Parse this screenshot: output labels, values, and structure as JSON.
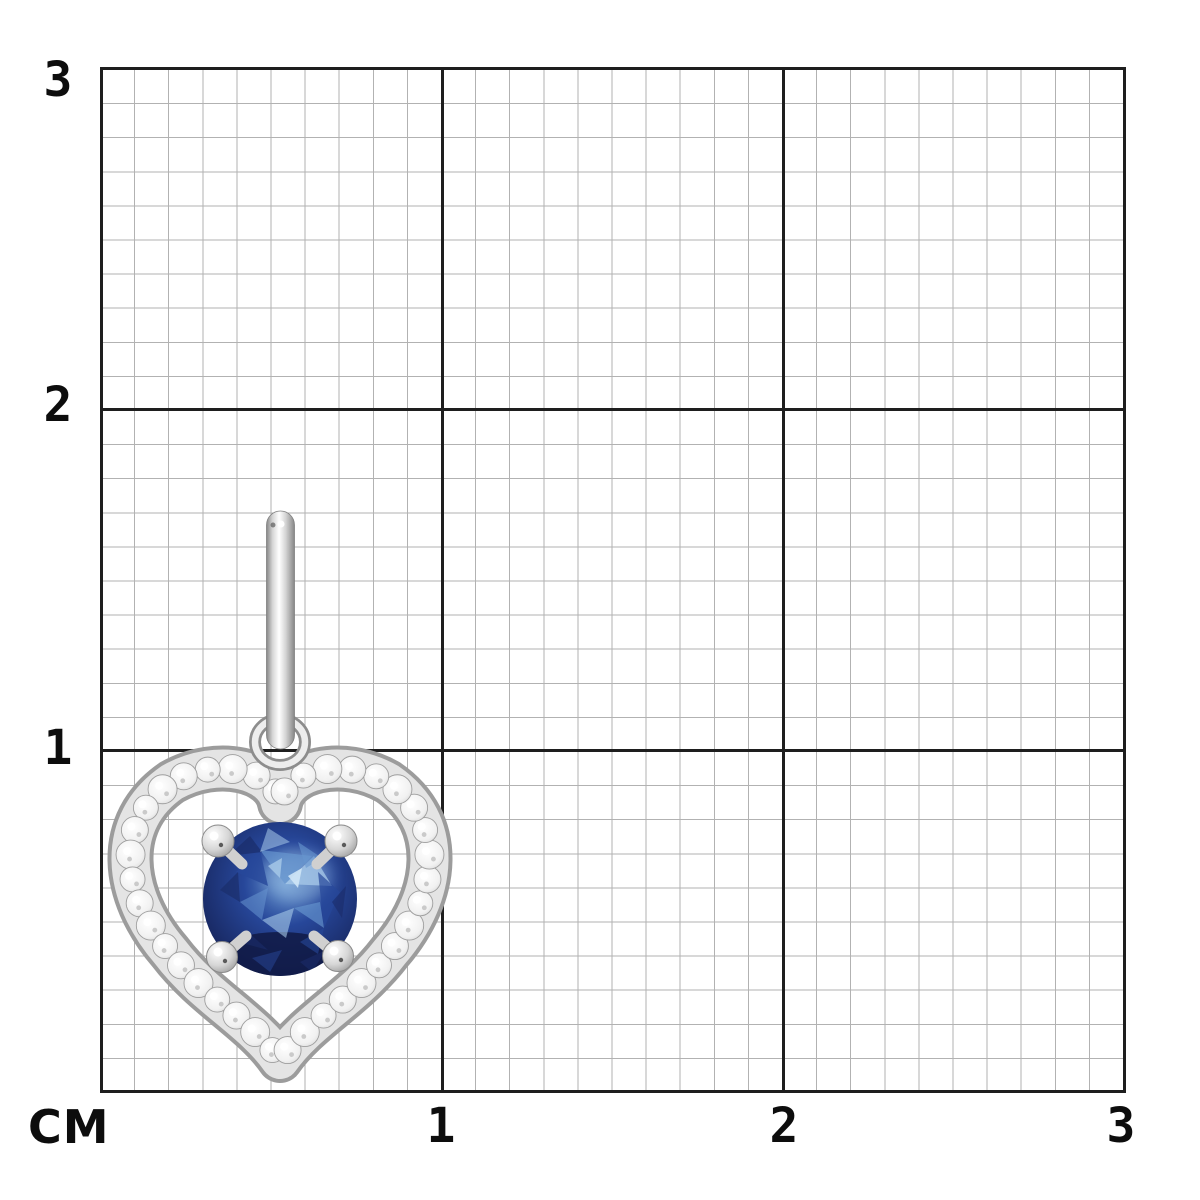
{
  "ruler": {
    "unit_label": "СМ",
    "left_ticks": [
      "3",
      "2",
      "1"
    ],
    "bottom_ticks": [
      "1",
      "2",
      "3"
    ]
  },
  "colors": {
    "background": "#ffffff",
    "grid_minor": "#b2b2b2",
    "grid_major": "#1e1e1e",
    "label": "#0d0d0d",
    "metal_dark": "#868686",
    "metal_mid": "#d6d6d6",
    "metal_light": "#ffffff",
    "band_outer": "#9c9c9c",
    "band_inner": "#e4e4e4",
    "diamond_white": "#ffffff",
    "diamond_shadow": "#9e9e9e",
    "sapphire_bright": "#cfe6f6",
    "sapphire_pale": "#a9cbe9",
    "sapphire_light": "#6796cf",
    "sapphire_mid": "#27479a",
    "sapphire_dark": "#1a2c69",
    "sapphire_deep": "#111a45"
  }
}
